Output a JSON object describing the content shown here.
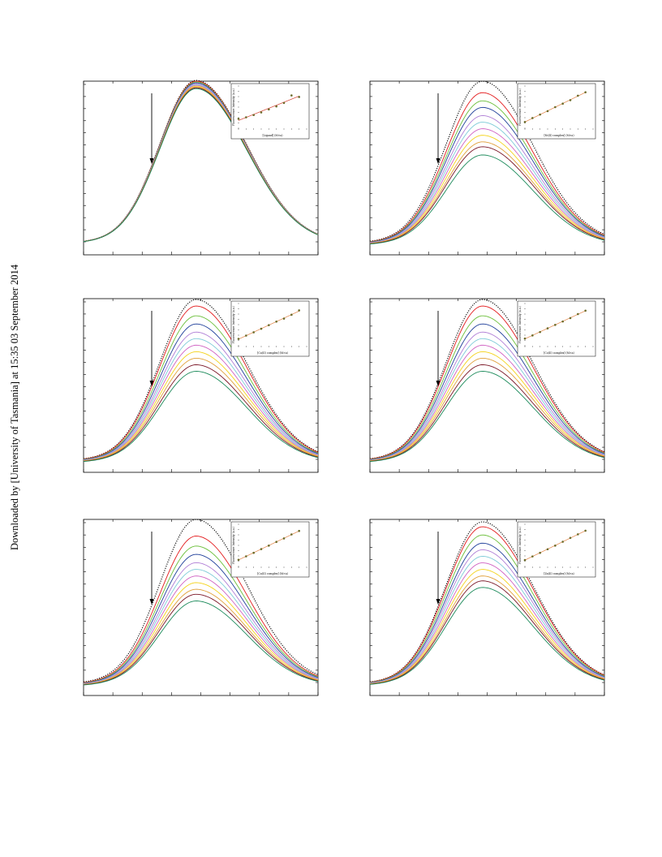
{
  "side_note": "Downloaded by [University of Tasmania] at 15:35 03 September 2014",
  "colors": {
    "series": [
      "#e31a1c",
      "#6bbf3a",
      "#1f3f9a",
      "#b07fd6",
      "#7ecbd8",
      "#d062c2",
      "#f4d31c",
      "#e0a03a",
      "#7a1626",
      "#1b8a5a"
    ],
    "reference": "#000000",
    "fit_line": "#e08040",
    "fit_marker": "#6b6b2a"
  },
  "chart_data": [
    {
      "type": "line",
      "panel": 1,
      "reference_series_style": "dotted",
      "series_count": 10,
      "peak_relative": [
        1.0,
        0.995,
        0.99,
        0.985,
        0.98,
        0.975,
        0.97,
        0.965,
        0.96,
        0.955,
        0.95
      ],
      "inset": {
        "type": "scatter",
        "xlabel": "[Ligand] (M×a)",
        "ylabel": "Fluorescence Intensity (a.u.)",
        "x": [
          0,
          1,
          2,
          3,
          4,
          5,
          6,
          7,
          8
        ],
        "y": [
          1.0,
          1.04,
          1.1,
          1.17,
          1.25,
          1.33,
          1.42,
          1.62,
          1.58
        ]
      }
    },
    {
      "type": "line",
      "panel": 2,
      "reference_series_style": "dotted",
      "series_count": 10,
      "peak_relative": [
        1.0,
        0.93,
        0.88,
        0.84,
        0.79,
        0.75,
        0.71,
        0.67,
        0.63,
        0.6,
        0.55
      ],
      "inset": {
        "type": "scatter",
        "xlabel": "[Ni(II) complex] (M×a)",
        "ylabel": "Fluorescence Intensity (a.u.)",
        "x": [
          0,
          1,
          2,
          3,
          4,
          5,
          6,
          7,
          8
        ],
        "y": [
          1.0,
          1.16,
          1.3,
          1.44,
          1.6,
          1.74,
          1.88,
          2.06,
          2.2
        ]
      }
    },
    {
      "type": "line",
      "panel": 3,
      "reference_series_style": "dotted",
      "series_count": 10,
      "peak_relative": [
        1.0,
        0.96,
        0.9,
        0.85,
        0.8,
        0.76,
        0.72,
        0.68,
        0.64,
        0.6,
        0.56
      ],
      "inset": {
        "type": "scatter",
        "xlabel": "[Cu(II) complex] (M×a)",
        "ylabel": "Fluorescence Intensity (a.u.)",
        "x": [
          0,
          1,
          2,
          3,
          4,
          5,
          6,
          7,
          8
        ],
        "y": [
          1.0,
          1.12,
          1.24,
          1.37,
          1.5,
          1.63,
          1.74,
          1.88,
          2.04
        ]
      }
    },
    {
      "type": "line",
      "panel": 4,
      "reference_series_style": "dotted",
      "series_count": 10,
      "peak_relative": [
        1.0,
        0.96,
        0.9,
        0.85,
        0.8,
        0.76,
        0.72,
        0.68,
        0.64,
        0.6,
        0.56
      ],
      "inset": {
        "type": "scatter",
        "xlabel": "[Co(II) complex] (M×a)",
        "ylabel": "Fluorescence Intensity (a.u.)",
        "x": [
          0,
          1,
          2,
          3,
          4,
          5,
          6,
          7,
          8
        ],
        "y": [
          1.0,
          1.11,
          1.23,
          1.36,
          1.48,
          1.6,
          1.72,
          1.86,
          1.98
        ]
      }
    },
    {
      "type": "line",
      "panel": 5,
      "reference_series_style": "dotted",
      "series_count": 10,
      "peak_relative": [
        1.0,
        0.9,
        0.84,
        0.79,
        0.74,
        0.7,
        0.66,
        0.62,
        0.58,
        0.55,
        0.51
      ],
      "inset": {
        "type": "scatter",
        "xlabel": "[Cu(II) complex] (M×a)",
        "ylabel": "Fluorescence Intensity (a.u.)",
        "x": [
          0,
          1,
          2,
          3,
          4,
          5,
          6,
          7,
          8
        ],
        "y": [
          1.0,
          1.13,
          1.26,
          1.4,
          1.53,
          1.67,
          1.8,
          1.95,
          2.08
        ]
      }
    },
    {
      "type": "line",
      "panel": 6,
      "reference_series_style": "dotted",
      "series_count": 10,
      "peak_relative": [
        1.0,
        0.97,
        0.92,
        0.87,
        0.83,
        0.79,
        0.75,
        0.71,
        0.67,
        0.64,
        0.6
      ],
      "inset": {
        "type": "scatter",
        "xlabel": "[Zn(II) complex] (M×a)",
        "ylabel": "Fluorescence Intensity (a.u.)",
        "x": [
          0,
          1,
          2,
          3,
          4,
          5,
          6,
          7,
          8
        ],
        "y": [
          1.0,
          1.14,
          1.28,
          1.42,
          1.56,
          1.71,
          1.86,
          2.0,
          2.14
        ]
      }
    }
  ]
}
